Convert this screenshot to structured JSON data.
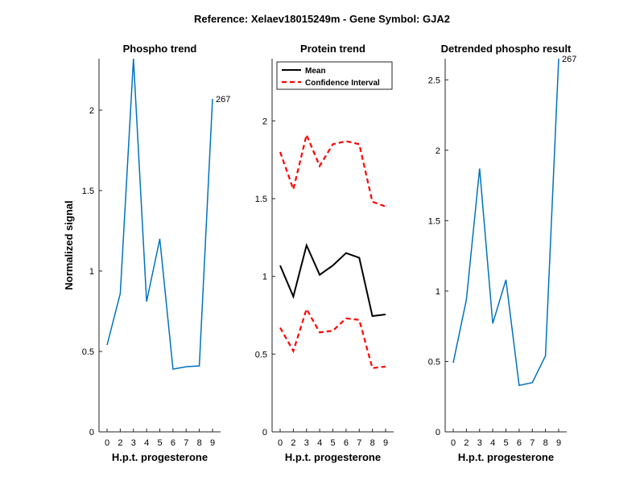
{
  "figure_title": "Reference:  Xelaev18015249m - Gene Symbol:  GJA2",
  "chart_data": [
    {
      "type": "line",
      "title": "Phospho trend",
      "xlabel": "H.p.t. progesterone",
      "ylabel": "Normalized signal",
      "categories": [
        "0",
        "2",
        "3",
        "4",
        "5",
        "6",
        "7",
        "8",
        "9"
      ],
      "ylim": [
        0,
        2.32
      ],
      "yticks": [
        0,
        0.5,
        1,
        1.5,
        2
      ],
      "ytick_labels": [
        "0",
        "0.5",
        "1",
        "1.5",
        "2"
      ],
      "series": [
        {
          "name": "Phospho",
          "color": "#0072BD",
          "dash": "",
          "values": [
            0.54,
            0.86,
            2.32,
            0.81,
            1.2,
            0.39,
            0.405,
            0.41,
            2.07
          ]
        }
      ],
      "annotation": {
        "text": "267",
        "index": 8
      }
    },
    {
      "type": "line",
      "title": "Protein trend",
      "xlabel": "H.p.t. progesterone",
      "ylabel": "",
      "categories": [
        "0",
        "2",
        "3",
        "4",
        "5",
        "6",
        "7",
        "8",
        "9"
      ],
      "ylim": [
        0,
        2.4
      ],
      "yticks": [
        0,
        0.5,
        1,
        1.5,
        2
      ],
      "ytick_labels": [
        "0",
        "0.5",
        "1",
        "1.5",
        "2"
      ],
      "series": [
        {
          "name": "Mean",
          "color": "#000000",
          "dash": "",
          "values": [
            1.07,
            0.87,
            1.2,
            1.01,
            1.07,
            1.15,
            1.12,
            0.745,
            0.755
          ]
        },
        {
          "name": "Confidence Interval",
          "color": "#FF0000",
          "dash": "6,4",
          "values": [
            1.8,
            1.56,
            1.91,
            1.71,
            1.85,
            1.87,
            1.85,
            1.48,
            1.45
          ]
        },
        {
          "name": "Confidence Interval (lower)",
          "color": "#FF0000",
          "dash": "6,4",
          "values": [
            0.67,
            0.52,
            0.79,
            0.64,
            0.65,
            0.73,
            0.72,
            0.41,
            0.42
          ]
        }
      ],
      "legend": {
        "location": "top",
        "entries": [
          "Mean",
          "Confidence Interval"
        ]
      }
    },
    {
      "type": "line",
      "title": "Detrended phospho result",
      "xlabel": "H.p.t. progesterone",
      "ylabel": "",
      "categories": [
        "0",
        "2",
        "3",
        "4",
        "5",
        "6",
        "7",
        "8",
        "9"
      ],
      "ylim": [
        0,
        2.65
      ],
      "yticks": [
        0,
        0.5,
        1,
        1.5,
        2,
        2.5
      ],
      "ytick_labels": [
        "0",
        "0.5",
        "1",
        "1.5",
        "2",
        "2.5"
      ],
      "series": [
        {
          "name": "Detrended",
          "color": "#0072BD",
          "dash": "",
          "values": [
            0.49,
            0.94,
            1.87,
            0.77,
            1.08,
            0.33,
            0.35,
            0.54,
            2.65
          ]
        }
      ],
      "annotation": {
        "text": "267",
        "index": 8
      }
    }
  ]
}
